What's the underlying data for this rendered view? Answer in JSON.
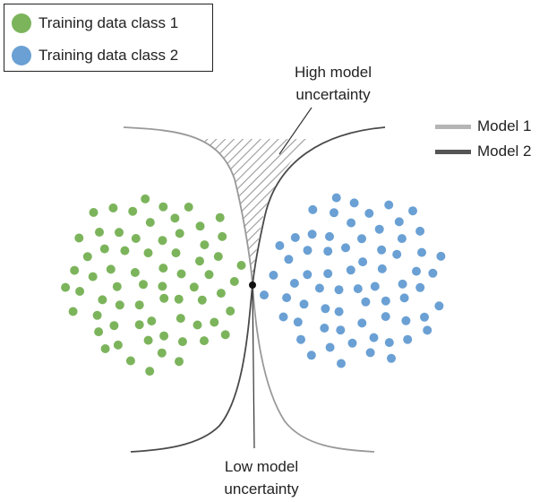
{
  "legend": {
    "class1_label": "Training data class 1",
    "class2_label": "Training data class 2"
  },
  "annotations": {
    "high_line1": "High model",
    "high_line2": "uncertainty",
    "low_line1": "Low model",
    "low_line2": "uncertainty"
  },
  "models": {
    "model1_label": "Model 1",
    "model2_label": "Model 2"
  },
  "colors": {
    "class1": "#7cb45c",
    "class2": "#6aa0d4",
    "model1": "#b5b5b5",
    "model2": "#555555"
  },
  "diagram": {
    "class1_point_count": 68,
    "class2_point_count": 68
  }
}
